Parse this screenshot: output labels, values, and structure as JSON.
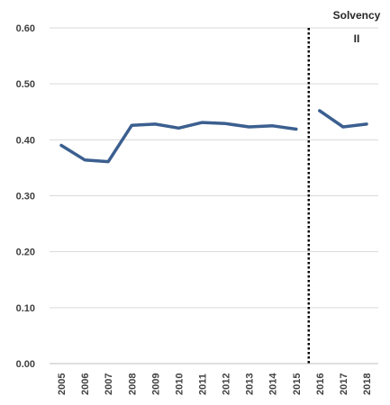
{
  "chart_data": {
    "type": "line",
    "title": "",
    "xlabel": "",
    "ylabel": "",
    "ylim": [
      0,
      0.6
    ],
    "yticks": [
      "0.00",
      "0.10",
      "0.20",
      "0.30",
      "0.40",
      "0.50",
      "0.60"
    ],
    "categories": [
      "2005",
      "2006",
      "2007",
      "2008",
      "2009",
      "2010",
      "2011",
      "2012",
      "2013",
      "2014",
      "2015",
      "2016",
      "2017",
      "2018"
    ],
    "series": [
      {
        "values": [
          0.39,
          0.364,
          0.361,
          0.426,
          0.428,
          0.421,
          0.431,
          0.429,
          0.423,
          0.425,
          0.419,
          null,
          null,
          null
        ]
      },
      {
        "values": [
          null,
          null,
          null,
          null,
          null,
          null,
          null,
          null,
          null,
          null,
          null,
          0.452,
          0.423,
          0.428
        ]
      }
    ],
    "series_color": "#3b5f8f",
    "grid": true,
    "legend": "none",
    "annotation": {
      "text_line1": "Solvency",
      "text_line2": "II",
      "marker_at": "2016",
      "style": "dotted vertical line"
    }
  }
}
